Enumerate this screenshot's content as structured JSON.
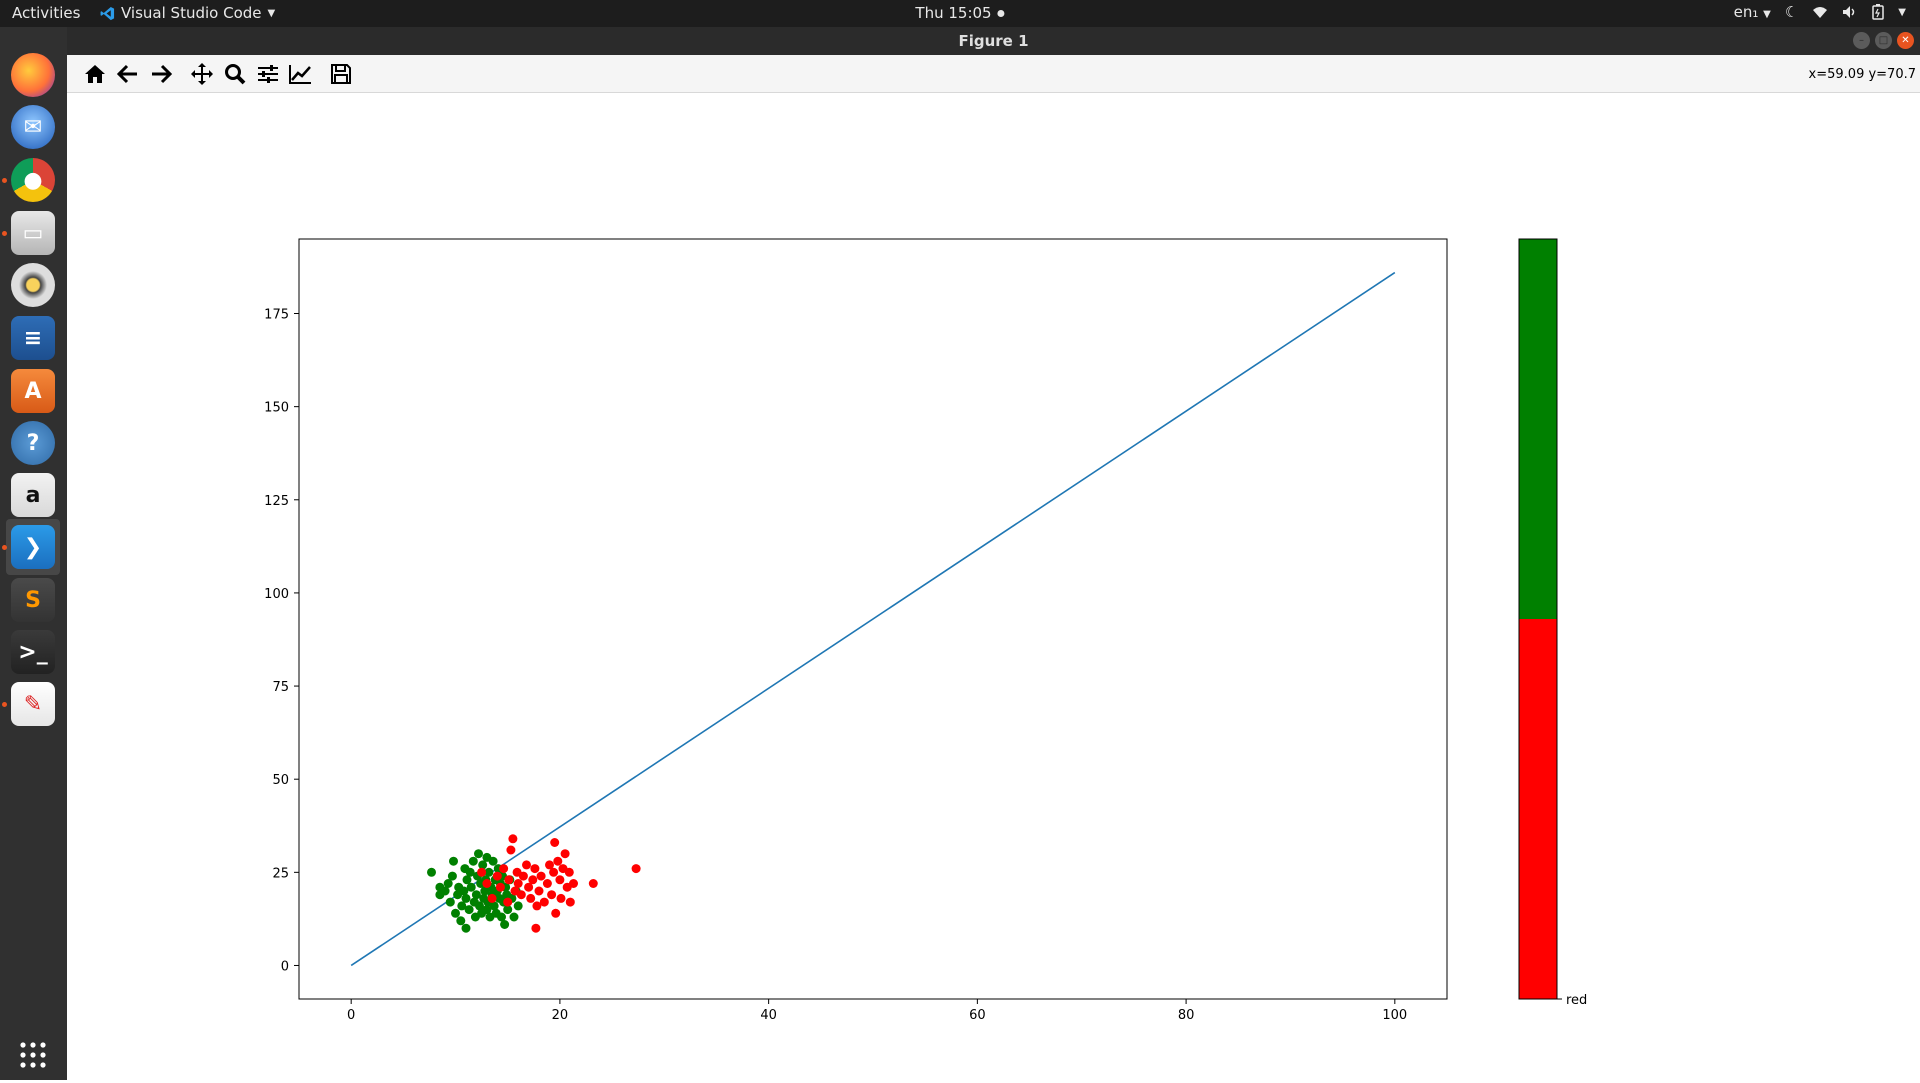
{
  "topbar": {
    "activities": "Activities",
    "app_name": "Visual Studio Code",
    "clock": "Thu 15:05",
    "lang": "en₁"
  },
  "dock": {
    "items": [
      {
        "name": "firefox-icon",
        "running": false
      },
      {
        "name": "thunderbird-icon",
        "running": false
      },
      {
        "name": "chrome-icon",
        "running": true
      },
      {
        "name": "files-icon",
        "running": true
      },
      {
        "name": "rhythmbox-icon",
        "running": false
      },
      {
        "name": "libreoffice-writer-icon",
        "running": false
      },
      {
        "name": "software-center-icon",
        "running": false
      },
      {
        "name": "help-icon",
        "running": false
      },
      {
        "name": "amazon-icon",
        "running": false
      },
      {
        "name": "vscode-icon",
        "running": true,
        "active": true
      },
      {
        "name": "sublime-text-icon",
        "running": false
      },
      {
        "name": "terminal-icon",
        "running": false
      },
      {
        "name": "document-viewer-icon",
        "running": true
      },
      {
        "name": "show-apps-icon",
        "running": false
      }
    ]
  },
  "window": {
    "title": "Figure 1",
    "coords": "x=59.09 y=70.7"
  },
  "toolbar": {
    "tools": [
      "home-icon",
      "back-icon",
      "forward-icon",
      "pan-icon",
      "zoom-icon",
      "configure-subplots-icon",
      "edit-axis-icon",
      "save-icon"
    ]
  },
  "colors": {
    "line": "#1f77b4",
    "green": "#008000",
    "red": "#ff0000"
  },
  "chart_data": [
    {
      "type": "scatter",
      "title": "",
      "xlabel": "",
      "ylabel": "",
      "xlim": [
        -5,
        105
      ],
      "ylim": [
        -9,
        195
      ],
      "xticks": [
        "0",
        "20",
        "40",
        "60",
        "80",
        "100"
      ],
      "yticks": [
        "0",
        "25",
        "50",
        "75",
        "100",
        "125",
        "150",
        "175"
      ],
      "line": {
        "x": [
          0,
          100
        ],
        "y": [
          0,
          186
        ]
      },
      "series": [
        {
          "color": "green",
          "points": [
            [
              7.7,
              25
            ],
            [
              8.5,
              19
            ],
            [
              8.5,
              21
            ],
            [
              9,
              20
            ],
            [
              9.3,
              22
            ],
            [
              9.5,
              17
            ],
            [
              9.7,
              24
            ],
            [
              9.8,
              28
            ],
            [
              10,
              14
            ],
            [
              10.2,
              19
            ],
            [
              10.3,
              21
            ],
            [
              10.5,
              12
            ],
            [
              10.6,
              16
            ],
            [
              10.8,
              20
            ],
            [
              10.9,
              26
            ],
            [
              11,
              10
            ],
            [
              11,
              18
            ],
            [
              11.1,
              23
            ],
            [
              11.3,
              15
            ],
            [
              11.4,
              25
            ],
            [
              11.5,
              21
            ],
            [
              11.7,
              28
            ],
            [
              11.8,
              17
            ],
            [
              11.9,
              13
            ],
            [
              12,
              19
            ],
            [
              12.1,
              24
            ],
            [
              12.2,
              30
            ],
            [
              12.3,
              16
            ],
            [
              12.4,
              22
            ],
            [
              12.5,
              14
            ],
            [
              12.6,
              27
            ],
            [
              12.7,
              18
            ],
            [
              12.8,
              20
            ],
            [
              12.9,
              23
            ],
            [
              13,
              15
            ],
            [
              13,
              29
            ],
            [
              13.1,
              17
            ],
            [
              13.2,
              25
            ],
            [
              13.3,
              13
            ],
            [
              13.4,
              21
            ],
            [
              13.5,
              19
            ],
            [
              13.6,
              28
            ],
            [
              13.7,
              16
            ],
            [
              13.8,
              23
            ],
            [
              13.9,
              14
            ],
            [
              14,
              20
            ],
            [
              14.1,
              26
            ],
            [
              14.2,
              18
            ],
            [
              14.3,
              22
            ],
            [
              14.4,
              13
            ],
            [
              14.5,
              24
            ],
            [
              14.6,
              17
            ],
            [
              14.7,
              11
            ],
            [
              14.8,
              21
            ],
            [
              14.9,
              19
            ],
            [
              15,
              15
            ],
            [
              15.2,
              23
            ],
            [
              15.4,
              18
            ],
            [
              15.6,
              13
            ],
            [
              15.8,
              20
            ],
            [
              16,
              16
            ]
          ]
        },
        {
          "color": "red",
          "points": [
            [
              12.5,
              25
            ],
            [
              13,
              22
            ],
            [
              13.5,
              18
            ],
            [
              14,
              24
            ],
            [
              14.3,
              21
            ],
            [
              14.6,
              26
            ],
            [
              15,
              17
            ],
            [
              15.1,
              23
            ],
            [
              15.3,
              31
            ],
            [
              15.5,
              34
            ],
            [
              15.7,
              20
            ],
            [
              15.9,
              25
            ],
            [
              16,
              22
            ],
            [
              16.3,
              19
            ],
            [
              16.5,
              24
            ],
            [
              16.8,
              27
            ],
            [
              17,
              21
            ],
            [
              17.2,
              18
            ],
            [
              17.4,
              23
            ],
            [
              17.6,
              26
            ],
            [
              17.7,
              10
            ],
            [
              17.8,
              16
            ],
            [
              18,
              20
            ],
            [
              18.2,
              24
            ],
            [
              18.5,
              17
            ],
            [
              18.8,
              22
            ],
            [
              19,
              27
            ],
            [
              19.2,
              19
            ],
            [
              19.4,
              25
            ],
            [
              19.5,
              33
            ],
            [
              19.6,
              14
            ],
            [
              19.8,
              28
            ],
            [
              20,
              23
            ],
            [
              20.1,
              18
            ],
            [
              20.3,
              26
            ],
            [
              20.5,
              30
            ],
            [
              20.7,
              21
            ],
            [
              20.9,
              25
            ],
            [
              21,
              17
            ],
            [
              21.3,
              22
            ],
            [
              23.2,
              22
            ],
            [
              27.3,
              26
            ]
          ]
        }
      ]
    },
    {
      "type": "bar",
      "title": "",
      "xlabel": "",
      "ylabel": "",
      "categories": [
        "red",
        "green"
      ],
      "values": [
        0.5,
        0.5
      ],
      "tick_label": "red"
    }
  ]
}
